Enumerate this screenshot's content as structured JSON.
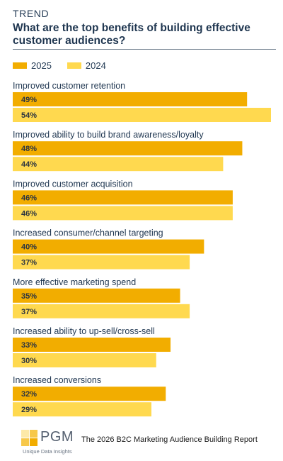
{
  "header": {
    "kicker": "TREND",
    "title": "What are the top benefits of building effective customer audiences?"
  },
  "colors": {
    "series_2025": "#f2ad00",
    "series_2024": "#ffd94f",
    "label_text": "#1f3650",
    "value_text": "#2b3440"
  },
  "chart_data": {
    "type": "bar",
    "orientation": "horizontal",
    "categories": [
      "Improved customer retention",
      "Improved ability to build brand awareness/loyalty",
      "Improved customer acquisition",
      "Increased consumer/channel targeting",
      "More effective marketing spend",
      "Increased ability to up-sell/cross-sell",
      "Increased conversions"
    ],
    "series": [
      {
        "name": "2025",
        "values": [
          49,
          48,
          46,
          40,
          35,
          33,
          32
        ],
        "labels": [
          "49%",
          "48%",
          "46%",
          "40%",
          "35%",
          "33%",
          "32%"
        ]
      },
      {
        "name": "2024",
        "values": [
          54,
          44,
          46,
          37,
          37,
          30,
          29
        ],
        "labels": [
          "54%",
          "44%",
          "46%",
          "37%",
          "37%",
          "30%",
          "29%"
        ]
      }
    ],
    "value_format": "percent",
    "legend_position": "top-left",
    "grid": false
  },
  "footer": {
    "logo_text": "PGM",
    "logo_tagline": "Unique Data Insights",
    "report_title": "The 2026 B2C Marketing Audience Building Report"
  }
}
